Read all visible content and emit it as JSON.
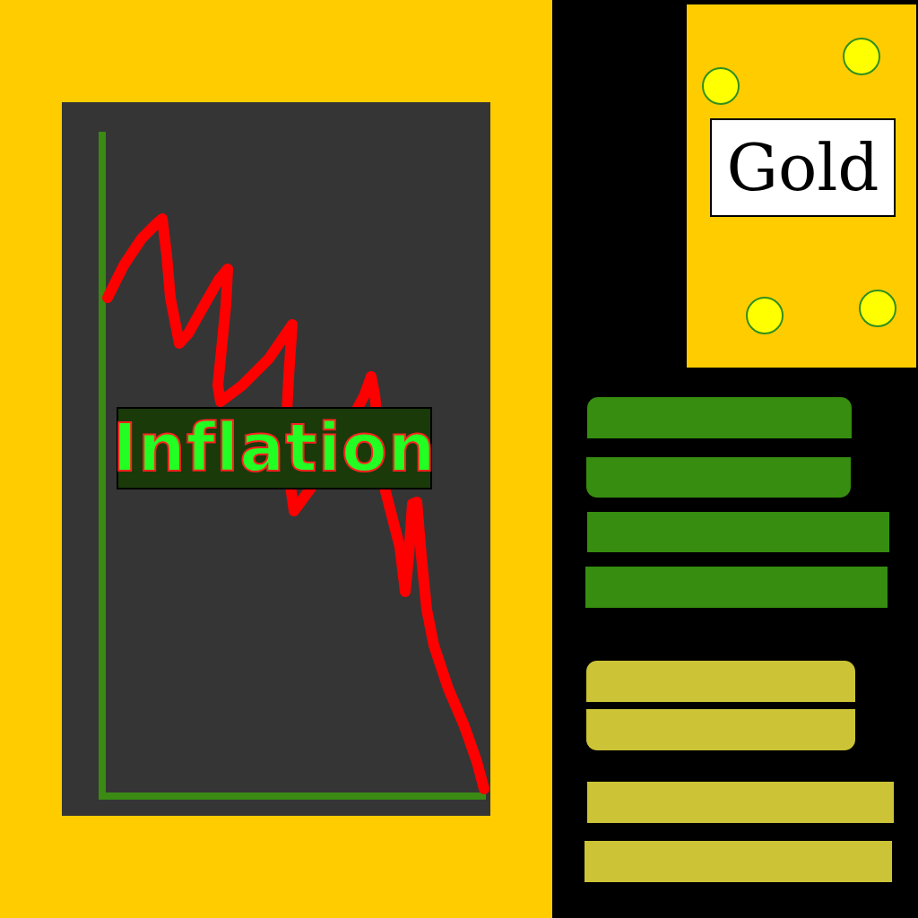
{
  "colors": {
    "background": "#000000",
    "panel": "#ffcc00",
    "chart_board": "#353535",
    "chart_axis": "#3a8a14",
    "chart_line": "#ff0000",
    "inflation_bg": "#1a3a0a",
    "inflation_text": "#22ff22",
    "gold_card": "#ffcc00",
    "coin": "#ffff00",
    "green_bars": "#368d0f",
    "khaki_bars": "#ccc436"
  },
  "labels": {
    "inflation": "Inflation",
    "gold": "Gold"
  },
  "icons": {
    "coin": "coin-icon",
    "cash_stack": "cash-stack-icon",
    "gold_bar_stack": "gold-bar-stack-icon"
  }
}
